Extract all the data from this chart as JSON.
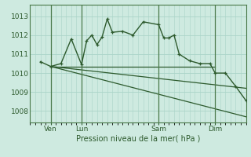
{
  "bg_color": "#ceeae0",
  "grid_color": "#aad4c8",
  "line_color": "#2d5a2d",
  "title": "Pression niveau de la mer( hPa )",
  "yticks": [
    1008,
    1009,
    1010,
    1011,
    1012,
    1013
  ],
  "ylim": [
    1007.4,
    1013.6
  ],
  "xlim": [
    0,
    84
  ],
  "xtick_positions": [
    8,
    20,
    50,
    72
  ],
  "xtick_labels": [
    "Ven",
    "Lun",
    "Sam",
    "Dim"
  ],
  "vline_positions": [
    8,
    20,
    50,
    72
  ],
  "series0": {
    "x": [
      4,
      8,
      12,
      16,
      20,
      22,
      24,
      26,
      28,
      30,
      32,
      36,
      40,
      44,
      50,
      52,
      54,
      56,
      58,
      62,
      66,
      70,
      72,
      76,
      80,
      84
    ],
    "y": [
      1010.6,
      1010.35,
      1010.5,
      1011.8,
      1010.45,
      1011.7,
      1012.0,
      1011.5,
      1011.9,
      1012.85,
      1012.15,
      1012.2,
      1012.0,
      1012.7,
      1012.55,
      1011.85,
      1011.85,
      1012.0,
      1011.0,
      1010.65,
      1010.5,
      1010.5,
      1010.0,
      1010.0,
      1009.3,
      1008.55
    ]
  },
  "series1_x": [
    8,
    50,
    72
  ],
  "series1_y": [
    1010.35,
    1010.35,
    1010.35
  ],
  "series2_x": [
    8,
    84
  ],
  "series2_y": [
    1010.35,
    1009.2
  ],
  "series3_x": [
    8,
    84
  ],
  "series3_y": [
    1010.35,
    1007.7
  ]
}
